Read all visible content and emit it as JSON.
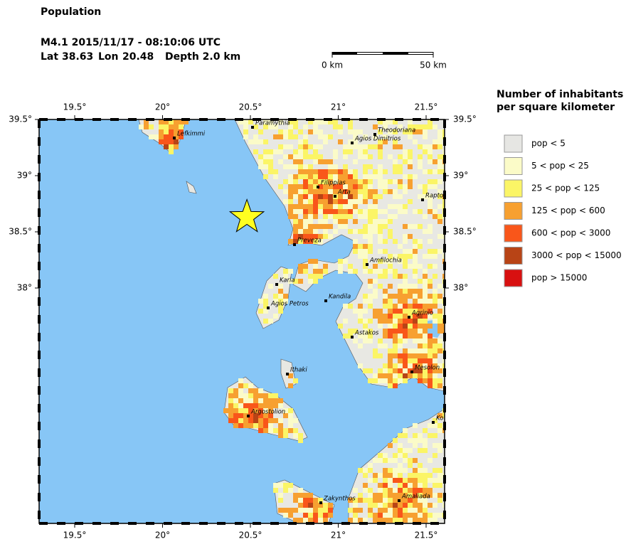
{
  "header": {
    "title": "Population",
    "event": "M4.1  2015/11/17 - 08:10:06 UTC",
    "lat_label": "Lat",
    "lat": 38.63,
    "lon_label": "Lon",
    "lon": 20.48,
    "depth": "Depth  2.0 km"
  },
  "scale_bar": {
    "start": "0 km",
    "end": "50 km"
  },
  "map": {
    "lon_ticks": [
      {
        "value": 19.5,
        "label": "19.5°"
      },
      {
        "value": 20,
        "label": "20°"
      },
      {
        "value": 20.5,
        "label": "20.5°"
      },
      {
        "value": 21,
        "label": "21°"
      },
      {
        "value": 21.5,
        "label": "21.5°"
      }
    ],
    "lat_ticks": [
      {
        "value": 39.5,
        "label": "39.5°"
      },
      {
        "value": 39,
        "label": "39°"
      },
      {
        "value": 38.5,
        "label": "38.5°"
      },
      {
        "value": 38,
        "label": "38°"
      }
    ],
    "towns": [
      "Lefkimmi",
      "Paramythia",
      "Theodoriana",
      "Agios Dimitrios",
      "Filippias",
      "Arta",
      "Rapto",
      "Preveza",
      "Amfilochia",
      "Karia",
      "Agios Petros",
      "Kandila",
      "Agrinio",
      "Astakos",
      "Mesolon",
      "Ithaki",
      "Argostolion",
      "Ko",
      "Zakynthos",
      "Amaliada"
    ]
  },
  "legend": {
    "title": [
      "Number of inhabitants",
      "per square kilometer"
    ],
    "items": [
      {
        "label": "pop < 5",
        "color": "#e6e6e3"
      },
      {
        "label": "5 < pop < 25",
        "color": "#fbfbc8"
      },
      {
        "label": "25 < pop < 125",
        "color": "#fbf566"
      },
      {
        "label": "125 < pop < 600",
        "color": "#f7a030"
      },
      {
        "label": "600 < pop < 3000",
        "color": "#f9561a"
      },
      {
        "label": "3000 < pop < 15000",
        "color": "#b84416"
      },
      {
        "label": "pop > 15000",
        "color": "#d81010"
      }
    ]
  }
}
